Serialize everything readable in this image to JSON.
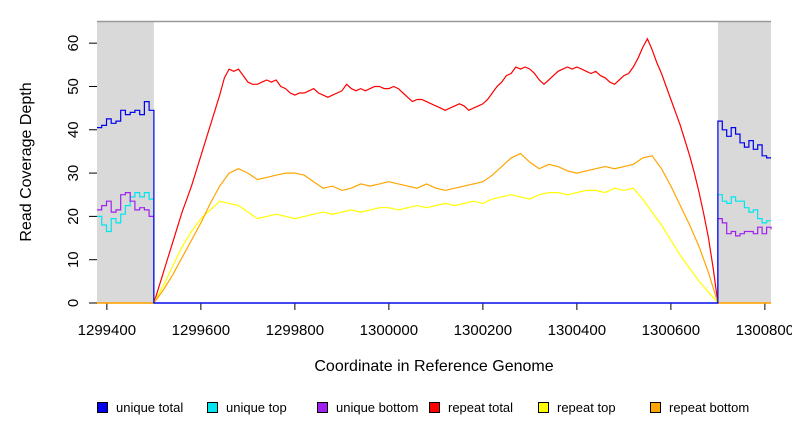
{
  "chart_data": {
    "type": "line",
    "title": "",
    "xlabel": "Coordinate in Reference Genome",
    "ylabel": "Read Coverage Depth",
    "xlim": [
      1299379,
      1300813
    ],
    "ylim": [
      0,
      65
    ],
    "grid": false,
    "legend_position": "bottom",
    "background": "#ffffff",
    "shade_color": "#d9d9d9",
    "border_color": "#999999",
    "axis_color": "#000000",
    "shaded_regions": [
      {
        "from": 1299379,
        "to": 1299500
      },
      {
        "from": 1300700,
        "to": 1300813
      }
    ],
    "xticks": {
      "values": [
        1299400,
        1299600,
        1299800,
        1300000,
        1300200,
        1300400,
        1300600,
        1300800
      ],
      "labels": [
        "1299400",
        "1299600",
        "1299800",
        "1300000",
        "1300200",
        "1300400",
        "1300600",
        "1300800"
      ]
    },
    "yticks": {
      "values": [
        0,
        10,
        20,
        30,
        40,
        50,
        60
      ],
      "labels": [
        "0",
        "10",
        "20",
        "30",
        "40",
        "50",
        "60"
      ]
    },
    "draw_order": [
      3,
      4,
      5,
      1,
      2,
      0
    ],
    "series": [
      {
        "name": "unique total",
        "color": "#0000EE",
        "render": "step",
        "segments": [
          {
            "x0": 1299379,
            "x1": 1299500,
            "values": [
              40.5,
              41,
              42.5,
              41.5,
              42,
              44.5,
              43.5,
              44,
              44.5,
              43.5,
              46.5,
              44.5,
              41
            ]
          },
          {
            "x0": 1299500,
            "x1": 1300700,
            "values": [
              0,
              0
            ]
          },
          {
            "x0": 1300700,
            "x1": 1300813,
            "values": [
              42,
              40,
              38.5,
              40.5,
              39,
              37,
              36,
              37.5,
              35.5,
              36.5,
              34,
              33.5,
              33.5
            ]
          }
        ]
      },
      {
        "name": "unique top",
        "color": "#00E5EE",
        "render": "step",
        "segments": [
          {
            "x0": 1299379,
            "x1": 1299500,
            "values": [
              20,
              18,
              16.5,
              19.5,
              18.5,
              20.5,
              22.5,
              24.5,
              25.5,
              24.5,
              25.5,
              24,
              24
            ]
          },
          {
            "x0": 1299500,
            "x1": 1300700,
            "values": [
              0,
              0
            ]
          },
          {
            "x0": 1300700,
            "x1": 1300813,
            "values": [
              25,
              23.5,
              23,
              24.5,
              23.5,
              23.5,
              22,
              21,
              21.5,
              19.5,
              18.5,
              19,
              19
            ]
          }
        ]
      },
      {
        "name": "unique bottom",
        "color": "#A020F0",
        "render": "step",
        "segments": [
          {
            "x0": 1299379,
            "x1": 1299500,
            "values": [
              21.5,
              22.5,
              23.5,
              21,
              21.5,
              25,
              25.5,
              23.5,
              21.5,
              22,
              21.5,
              20,
              16.5
            ]
          },
          {
            "x0": 1299500,
            "x1": 1300700,
            "values": [
              0,
              0
            ]
          },
          {
            "x0": 1300700,
            "x1": 1300813,
            "values": [
              19.5,
              18.5,
              16,
              16.5,
              15.5,
              16,
              16.5,
              16.5,
              16,
              17.5,
              16,
              17.5,
              17
            ]
          }
        ]
      },
      {
        "name": "repeat total",
        "color": "#FF0000",
        "render": "linear",
        "segments": [
          {
            "x0": 1299379,
            "x1": 1299500,
            "values": [
              0,
              0
            ]
          },
          {
            "x0": 1299500,
            "x1": 1300700,
            "values": [
              0,
              3.5,
              7,
              10.5,
              14,
              17.5,
              21,
              24,
              27,
              30.5,
              34,
              37.5,
              41,
              44.5,
              48,
              52,
              54,
              53.5,
              54,
              52.5,
              51,
              50.5,
              50.5,
              51,
              51.5,
              51,
              51.5,
              50,
              49.5,
              48.5,
              48,
              48.5,
              48.5,
              49,
              49.5,
              48.5,
              48,
              47.5,
              48,
              48.5,
              49,
              50.5,
              49.5,
              49,
              49.5,
              49,
              49.5,
              50,
              50,
              49.5,
              49.5,
              50,
              49.5,
              48.5,
              47.5,
              46.5,
              47,
              47,
              46.5,
              46,
              45.5,
              45,
              44.5,
              45,
              45.5,
              46,
              45.5,
              44.5,
              45,
              45.5,
              46,
              47,
              48.5,
              50,
              51,
              52.5,
              53,
              54.5,
              54,
              54.5,
              54,
              53,
              51.5,
              50.5,
              51.5,
              52.5,
              53.5,
              54,
              54.5,
              54,
              54.5,
              54,
              53.5,
              53,
              53.5,
              52.5,
              52,
              51,
              50.5,
              51.5,
              52.5,
              53,
              54.5,
              56.5,
              59,
              61,
              58.5,
              55.5,
              53,
              50,
              47,
              44,
              41,
              37.5,
              34,
              30,
              25.5,
              20.5,
              15,
              8,
              0
            ]
          },
          {
            "x0": 1300700,
            "x1": 1300813,
            "values": [
              0,
              0
            ]
          }
        ]
      },
      {
        "name": "repeat top",
        "color": "#FFFF00",
        "render": "linear",
        "segments": [
          {
            "x0": 1299379,
            "x1": 1299500,
            "values": [
              0,
              0
            ]
          },
          {
            "x0": 1299500,
            "x1": 1300700,
            "values": [
              0,
              4,
              8.5,
              13,
              16.5,
              19.5,
              21.5,
              23.5,
              23,
              22.5,
              21,
              19.5,
              20,
              20.5,
              20,
              19.5,
              20,
              20.5,
              21,
              20.5,
              21,
              21.5,
              21,
              21.5,
              22,
              22,
              21.5,
              22,
              22.5,
              22,
              22.5,
              23,
              22.5,
              23,
              23.5,
              23,
              24,
              24.5,
              25,
              24.5,
              24,
              25,
              25.5,
              25.5,
              25,
              25.5,
              26,
              26,
              25.5,
              26.5,
              26,
              26.5,
              24,
              21,
              18,
              14.5,
              11,
              8,
              5,
              2.5,
              0
            ]
          },
          {
            "x0": 1300700,
            "x1": 1300813,
            "values": [
              0,
              0
            ]
          }
        ]
      },
      {
        "name": "repeat bottom",
        "color": "#FFA500",
        "render": "linear",
        "segments": [
          {
            "x0": 1299379,
            "x1": 1299500,
            "values": [
              0,
              0
            ]
          },
          {
            "x0": 1299500,
            "x1": 1300700,
            "values": [
              0,
              3,
              6.5,
              10.5,
              14.5,
              18.5,
              23,
              27,
              30,
              31,
              30,
              28.5,
              29,
              29.5,
              30,
              30,
              29.5,
              28,
              26.5,
              27,
              26,
              26.5,
              27.5,
              27,
              27.5,
              28,
              27.5,
              27,
              26.5,
              27.5,
              26.5,
              26,
              26.5,
              27,
              27.5,
              28,
              29.5,
              31.5,
              33.5,
              34.5,
              32.5,
              31,
              32,
              31.5,
              30.5,
              30,
              30.5,
              31,
              31.5,
              31,
              31.5,
              32,
              33.5,
              34,
              31,
              27,
              22.5,
              18,
              13,
              7,
              0
            ]
          },
          {
            "x0": 1300700,
            "x1": 1300813,
            "values": [
              0,
              0
            ]
          }
        ]
      }
    ]
  }
}
